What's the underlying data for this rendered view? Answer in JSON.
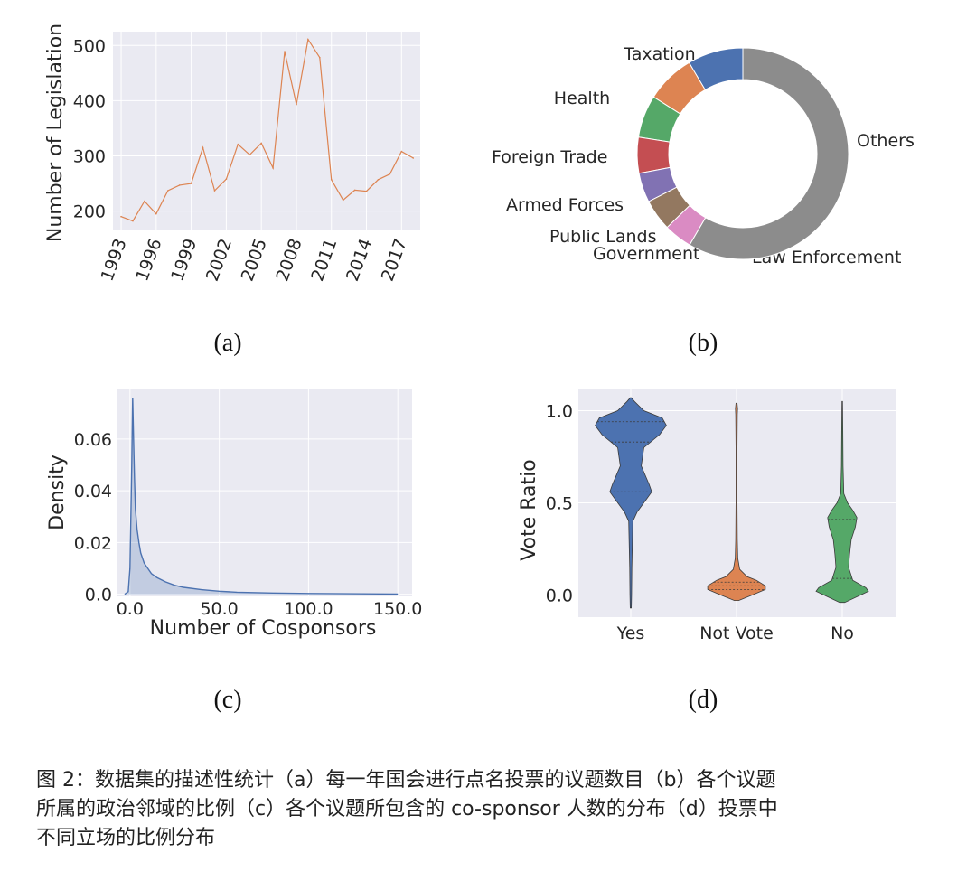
{
  "chart_data": [
    {
      "panel": "(a)",
      "type": "line",
      "x": [
        1993,
        1994,
        1995,
        1996,
        1997,
        1998,
        1999,
        2000,
        2001,
        2002,
        2003,
        2004,
        2005,
        2006,
        2007,
        2008,
        2009,
        2010,
        2011,
        2012,
        2013,
        2014,
        2015,
        2016,
        2017,
        2018
      ],
      "values": [
        190,
        182,
        218,
        195,
        237,
        247,
        250,
        315,
        237,
        258,
        321,
        302,
        323,
        278,
        489,
        393,
        511,
        478,
        257,
        220,
        238,
        236,
        257,
        267,
        308,
        296
      ],
      "xticks": [
        1993,
        1996,
        1999,
        2002,
        2005,
        2008,
        2011,
        2014,
        2017
      ],
      "yticks": [
        200,
        300,
        400,
        500
      ],
      "ylim": [
        165,
        525
      ],
      "xlim": [
        1992.3,
        2018.6
      ],
      "ylabel": "Number of Legislation",
      "xlabel": "",
      "color": "#dd8452",
      "grid": true
    },
    {
      "panel": "(b)",
      "type": "pie",
      "style": "donut",
      "labels": [
        "Taxation",
        "Health",
        "Foreign Trade",
        "Armed Forces",
        "Public Lands",
        "Government",
        "Law Enforcement",
        "Others"
      ],
      "values": [
        8.5,
        7.5,
        6.5,
        5.5,
        4.5,
        4.8,
        4.3,
        58.4
      ],
      "colors": [
        "#4c72b0",
        "#dd8452",
        "#55a868",
        "#c44e52",
        "#8172b3",
        "#937860",
        "#da8bc3",
        "#8c8c8c"
      ]
    },
    {
      "panel": "(c)",
      "type": "area",
      "x": [
        -3,
        -1,
        0,
        1,
        1.5,
        2,
        2.5,
        3,
        4,
        5,
        6,
        8,
        10,
        12,
        15,
        20,
        25,
        30,
        40,
        50,
        60,
        80,
        100,
        120,
        150
      ],
      "values": [
        0,
        0.001,
        0.01,
        0.05,
        0.076,
        0.06,
        0.045,
        0.033,
        0.025,
        0.02,
        0.016,
        0.012,
        0.01,
        0.008,
        0.0065,
        0.0048,
        0.0035,
        0.0027,
        0.0018,
        0.0012,
        0.0008,
        0.0005,
        0.0003,
        0.0002,
        0.0001
      ],
      "xticks": [
        "0.0",
        "50.0",
        "100.0",
        "150.0"
      ],
      "xtick_values": [
        0,
        50,
        100,
        150
      ],
      "yticks": [
        "0.0",
        "0.02",
        "0.04",
        "0.06"
      ],
      "ytick_values": [
        0,
        0.02,
        0.04,
        0.06
      ],
      "xlim": [
        -7,
        158
      ],
      "ylim": [
        -0.0008,
        0.0795
      ],
      "xlabel": "Number of Cosponsors",
      "ylabel": "Density",
      "color": "#4c72b0",
      "grid": true
    },
    {
      "panel": "(d)",
      "type": "violin",
      "categories": [
        "Yes",
        "Not Vote",
        "No"
      ],
      "colors": [
        "#4c72b0",
        "#dd8452",
        "#55a868"
      ],
      "series": [
        {
          "name": "Yes",
          "y": [
            -0.07,
            0.0,
            0.15,
            0.4,
            0.45,
            0.52,
            0.56,
            0.6,
            0.7,
            0.8,
            0.87,
            0.92,
            0.96,
            1.0,
            1.05,
            1.07
          ],
          "width": [
            0.01,
            0.015,
            0.02,
            0.04,
            0.12,
            0.3,
            0.4,
            0.35,
            0.2,
            0.25,
            0.55,
            0.68,
            0.6,
            0.25,
            0.07,
            0.01
          ],
          "quartiles": [
            0.56,
            0.83,
            0.94
          ]
        },
        {
          "name": "Not Vote",
          "y": [
            -0.03,
            0.0,
            0.03,
            0.05,
            0.08,
            0.1,
            0.14,
            0.2,
            0.3,
            0.5,
            0.8,
            0.98,
            1.01,
            1.04
          ],
          "width": [
            0.04,
            0.3,
            0.55,
            0.55,
            0.38,
            0.2,
            0.06,
            0.025,
            0.015,
            0.01,
            0.01,
            0.015,
            0.02,
            0.01
          ],
          "quartiles": [
            0.03,
            0.05,
            0.07
          ]
        },
        {
          "name": "No",
          "y": [
            -0.04,
            0.0,
            0.02,
            0.04,
            0.08,
            0.15,
            0.22,
            0.3,
            0.37,
            0.42,
            0.46,
            0.5,
            0.55,
            0.7,
            0.9,
            1.05
          ],
          "width": [
            0.05,
            0.35,
            0.5,
            0.45,
            0.2,
            0.12,
            0.14,
            0.17,
            0.25,
            0.28,
            0.2,
            0.1,
            0.03,
            0.015,
            0.01,
            0.005
          ],
          "quartiles": [
            0.0,
            0.09,
            0.41
          ]
        }
      ],
      "yticks": [
        "0.0",
        "0.5",
        "1.0"
      ],
      "ytick_values": [
        0,
        0.5,
        1.0
      ],
      "ylim": [
        -0.12,
        1.12
      ],
      "ylabel": "Vote Ratio",
      "grid": true
    }
  ],
  "subcaptions": {
    "a": "(a)",
    "b": "(b)",
    "c": "(c)",
    "d": "(d)"
  },
  "caption": {
    "line1": "图 2：数据集的描述性统计（a）每一年国会进行点名投票的议题数目（b）各个议题",
    "line2": "所属的政治邻域的比例（c）各个议题所包含的 co-sponsor 人数的分布（d）投票中",
    "line3": "不同立场的比例分布"
  }
}
